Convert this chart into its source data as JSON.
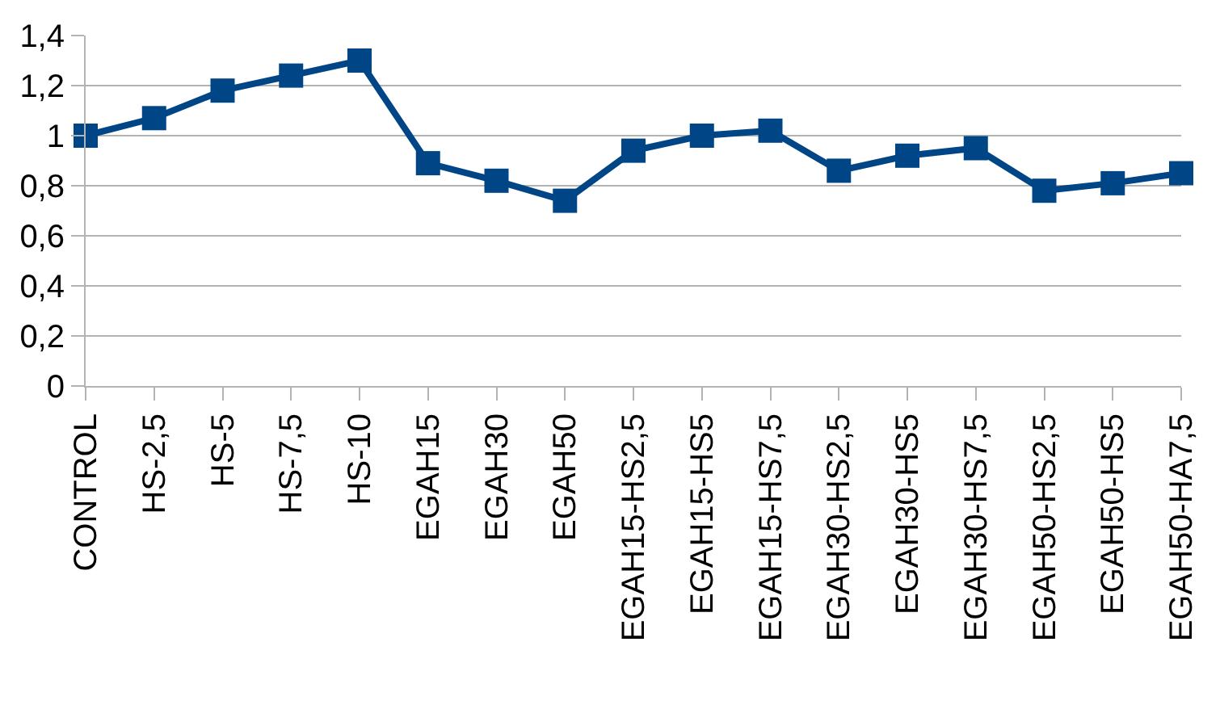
{
  "chart_data": {
    "type": "line",
    "categories": [
      "CONTROL",
      "HS-2,5",
      "HS-5",
      "HS-7,5",
      "HS-10",
      "EGAH15",
      "EGAH30",
      "EGAH50",
      "EGAH15-HS2,5",
      "EGAH15-HS5",
      "EGAH15-HS7,5",
      "EGAH30-HS2,5",
      "EGAH30-HS5",
      "EGAH30-HS7,5",
      "EGAH50-HS2,5",
      "EGAH50-HS5",
      "EGAH50-HA7,5"
    ],
    "series": [
      {
        "color": "#004586",
        "values": [
          1.0,
          1.07,
          1.18,
          1.24,
          1.3,
          0.89,
          0.82,
          0.74,
          0.94,
          1.0,
          1.02,
          0.86,
          0.92,
          0.95,
          0.78,
          0.81,
          0.85
        ]
      }
    ],
    "ylim": [
      0,
      1.4
    ],
    "yticks": [
      0,
      {
        "value": 0.2,
        "label": "0,2"
      },
      {
        "value": 0.4,
        "label": "0,4"
      },
      {
        "value": 0.6,
        "label": "0,6"
      },
      {
        "value": 0.8,
        "label": "0,8"
      },
      1,
      {
        "value": 1.2,
        "label": "1,2"
      },
      {
        "value": 1.4,
        "label": "1,4"
      }
    ],
    "grid": "y",
    "legend": false,
    "marker": "square",
    "line_style": "solid"
  }
}
